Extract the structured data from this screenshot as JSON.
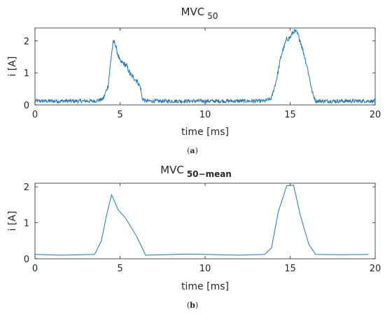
{
  "figure": {
    "panels": [
      {
        "caption_letter": "a",
        "title_main": "MVC",
        "title_sub": "50"
      },
      {
        "caption_letter": "b",
        "title_main": "MVC",
        "title_sub": "50−mean"
      }
    ]
  },
  "chart_data": [
    {
      "type": "line",
      "title": "MVC 50",
      "xlabel": "time [ms]",
      "ylabel": "i [A]",
      "xlim": [
        0,
        20
      ],
      "ylim": [
        0,
        2.4
      ],
      "x_ticks": [
        0,
        5,
        10,
        15,
        20
      ],
      "y_ticks": [
        0,
        1,
        2
      ],
      "grid": false,
      "line_color": "#1f77b4",
      "noise_amplitude": 0.06,
      "series": [
        {
          "x": [
            0,
            3.5,
            4.0,
            4.3,
            4.5,
            4.6,
            4.7,
            4.8,
            5.0,
            5.2,
            5.4,
            5.6,
            5.8,
            6.0,
            6.2,
            6.3,
            6.5,
            13.5,
            13.9,
            14.2,
            14.5,
            14.8,
            15.0,
            15.2,
            15.4,
            15.6,
            15.8,
            16.0,
            16.3,
            16.5,
            20
          ],
          "y": [
            0.12,
            0.12,
            0.18,
            0.6,
            1.6,
            1.95,
            1.95,
            1.7,
            1.35,
            1.3,
            1.2,
            0.95,
            0.85,
            0.75,
            0.55,
            0.2,
            0.12,
            0.12,
            0.2,
            0.8,
            1.6,
            2.05,
            2.1,
            2.3,
            2.25,
            2.0,
            1.6,
            1.2,
            0.4,
            0.12,
            0.12
          ]
        }
      ]
    },
    {
      "type": "line",
      "title": "MVC 50−mean",
      "xlabel": "time [ms]",
      "ylabel": "i [A]",
      "xlim": [
        0,
        20
      ],
      "ylim": [
        0,
        2.1
      ],
      "x_ticks": [
        0,
        5,
        10,
        15,
        20
      ],
      "y_ticks": [
        0,
        1,
        2
      ],
      "grid": false,
      "line_color": "#1f77b4",
      "series": [
        {
          "x": [
            0,
            1.5,
            3.5,
            3.9,
            4.2,
            4.5,
            4.9,
            5.3,
            6.0,
            6.5,
            9.0,
            12.0,
            13.5,
            13.9,
            14.3,
            14.8,
            15.2,
            15.6,
            16.1,
            16.5,
            18.0,
            19.6
          ],
          "y": [
            0.12,
            0.1,
            0.12,
            0.5,
            1.2,
            1.78,
            1.35,
            1.15,
            0.6,
            0.1,
            0.13,
            0.1,
            0.12,
            0.3,
            1.3,
            2.03,
            2.05,
            1.2,
            0.4,
            0.12,
            0.11,
            0.12
          ]
        }
      ]
    }
  ]
}
